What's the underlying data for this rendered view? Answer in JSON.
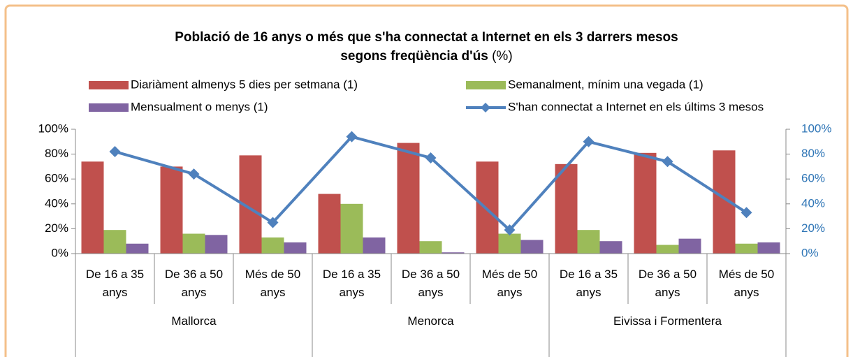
{
  "chart_data": {
    "type": "bar_line",
    "title": [
      "Població de 16 anys o més que s'ha connectat a Internet en els 3 darrers mesos",
      "segons freqüència d'ús",
      "(%)"
    ],
    "categories": [
      "De 16 a 35 anys",
      "De 36 a 50 anys",
      "Més de 50 anys",
      "De 16 a 35 anys",
      "De 36 a 50 anys",
      "Més de 50 anys",
      "De 16 a 35 anys",
      "De 36 a 50 anys",
      "Més de 50 anys"
    ],
    "groups": [
      "Mallorca",
      "Menorca",
      "Eivissa i Formentera"
    ],
    "series": [
      {
        "name": "Diariàment almenys 5 dies per setmana (1)",
        "color": "#c0504d",
        "values": [
          74,
          70,
          79,
          48,
          89,
          74,
          72,
          81,
          83
        ]
      },
      {
        "name": "Semanalment, mínim una vegada (1)",
        "color": "#9bbb59",
        "values": [
          19,
          16,
          13,
          40,
          10,
          16,
          19,
          7,
          8
        ]
      },
      {
        "name": "Mensualment o menys (1)",
        "color": "#8064a2",
        "values": [
          8,
          15,
          9,
          13,
          1,
          11,
          10,
          12,
          9
        ]
      },
      {
        "name": "S'han connectat a Internet en els últims 3 mesos",
        "color": "#4f81bd",
        "axis": "y2",
        "values": [
          82,
          64,
          25,
          94,
          77,
          19,
          90,
          74,
          33
        ]
      }
    ],
    "ylim": [
      0,
      100
    ],
    "yticks": [
      {
        "value": 0,
        "label": "0%"
      },
      {
        "value": 20,
        "label": "20%"
      },
      {
        "value": 40,
        "label": "40%"
      },
      {
        "value": 60,
        "label": "60%"
      },
      {
        "value": 80,
        "label": "80%"
      },
      {
        "value": 100,
        "label": "100%"
      }
    ],
    "y2lim": [
      0,
      100
    ],
    "y2ticks": [
      {
        "value": 0,
        "label": "0%"
      },
      {
        "value": 20,
        "label": "20%"
      },
      {
        "value": 40,
        "label": "40%"
      },
      {
        "value": 60,
        "label": "60%"
      },
      {
        "value": 80,
        "label": "80%"
      },
      {
        "value": 100,
        "label": "100%"
      }
    ],
    "y2_color": "#2e75b6"
  }
}
